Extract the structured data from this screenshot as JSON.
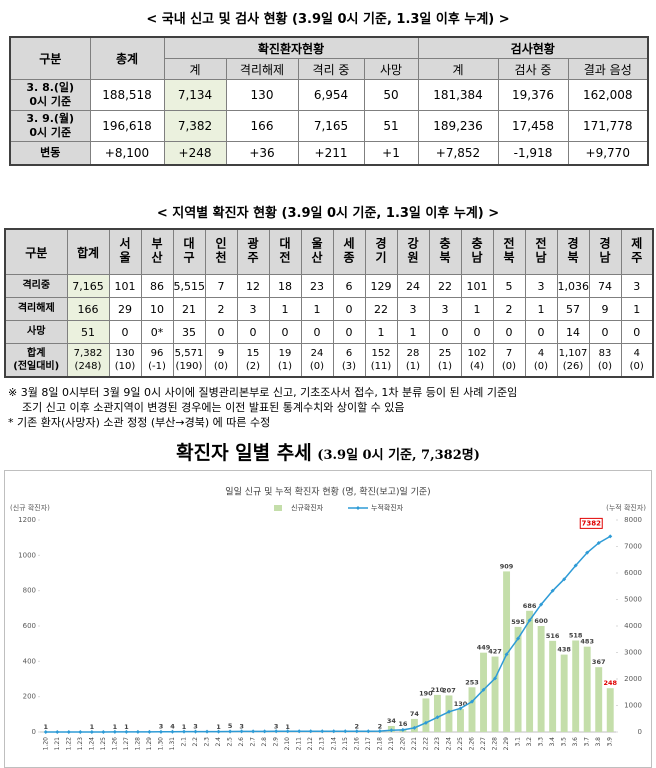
{
  "table1": {
    "title": "< 국내 신고 및 검사 현황 (3.9일 0시 기준, 1.3일 이후 누계) >",
    "header": {
      "group": "구분",
      "total": "총계",
      "confirmed": "확진환자현황",
      "tests": "검사현황",
      "sub": [
        "계",
        "격리해제",
        "격리 중",
        "사망",
        "계",
        "검사 중",
        "결과 음성"
      ]
    },
    "rows": [
      [
        [
          "3. 8.(일)",
          "0시 기준"
        ],
        "188,518",
        "7,134",
        "130",
        "6,954",
        "50",
        "181,384",
        "19,376",
        "162,008"
      ],
      [
        [
          "3. 9.(월)",
          "0시 기준"
        ],
        "196,618",
        "7,382",
        "166",
        "7,165",
        "51",
        "189,236",
        "17,458",
        "171,778"
      ],
      [
        "변동",
        "+8,100",
        "+248",
        "+36",
        "+211",
        "+1",
        "+7,852",
        "-1,918",
        "+9,770"
      ]
    ]
  },
  "table2": {
    "title": "< 지역별 확진자 현황 (3.9일 0시 기준, 1.3일 이후 누계) >",
    "header": [
      "구분",
      "합계",
      "서울",
      "부산",
      "대구",
      "인천",
      "광주",
      "대전",
      "울산",
      "세종",
      "경기",
      "강원",
      "충북",
      "충남",
      "전북",
      "전남",
      "경북",
      "경남",
      "제주"
    ],
    "rows": [
      [
        "격리중",
        "7,165",
        "101",
        "86",
        "5,515",
        "7",
        "12",
        "18",
        "23",
        "6",
        "129",
        "24",
        "22",
        "101",
        "5",
        "3",
        "1,036",
        "74",
        "3"
      ],
      [
        "격리해제",
        "166",
        "29",
        "10",
        "21",
        "2",
        "3",
        "1",
        "1",
        "0",
        "22",
        "3",
        "3",
        "1",
        "2",
        "1",
        "57",
        "9",
        "1"
      ],
      [
        "사망",
        "51",
        "0",
        "0*",
        "35",
        "0",
        "0",
        "0",
        "0",
        "0",
        "1",
        "1",
        "0",
        "0",
        "0",
        "0",
        "14",
        "0",
        "0"
      ],
      [
        [
          "합계",
          "(전일대비)"
        ],
        [
          "7,382",
          "(248)"
        ],
        [
          "130",
          "(10)"
        ],
        [
          "96",
          "(-1)"
        ],
        [
          "5,571",
          "(190)"
        ],
        [
          "9",
          "(0)"
        ],
        [
          "15",
          "(2)"
        ],
        [
          "19",
          "(1)"
        ],
        [
          "24",
          "(0)"
        ],
        [
          "6",
          "(3)"
        ],
        [
          "152",
          "(11)"
        ],
        [
          "28",
          "(1)"
        ],
        [
          "25",
          "(1)"
        ],
        [
          "102",
          "(4)"
        ],
        [
          "7",
          "(0)"
        ],
        [
          "4",
          "(0)"
        ],
        [
          "1,107",
          "(26)"
        ],
        [
          "83",
          "(0)"
        ],
        [
          "4",
          "(0)"
        ]
      ]
    ]
  },
  "notes": [
    "※ 3월 8일 0시부터 3월 9일 0시 사이에 질병관리본부로 신고, 기초조사서 접수, 1차 분류 등이 된 사례 기준임",
    "조기 신고 이후 소관지역이 변경된 경우에는 이전 발표된 통계수치와 상이할 수 있음",
    "* 기존 환자(사망자) 소관 정정 (부산→경북) 에 따른 수정"
  ],
  "chart_heading": {
    "main": "확진자 일별 추세",
    "sub": "(3.9일 0시 기준, 7,382명)"
  },
  "chart_data": {
    "type": "combo",
    "title": "일일 신규 및 누적 확진자 현황 (명, 확진(보고)일 기준)",
    "y_label": "(신규 확진자)",
    "y2_label": "(누적 확진자)",
    "legend": "top",
    "grid": false,
    "categories": [
      "1.20",
      "1.21",
      "1.22",
      "1.23",
      "1.24",
      "1.25",
      "1.26",
      "1.27",
      "1.28",
      "1.29",
      "1.30",
      "1.31",
      "2.1",
      "2.2",
      "2.3",
      "2.4",
      "2.5",
      "2.6",
      "2.7",
      "2.8",
      "2.9",
      "2.10",
      "2.11",
      "2.12",
      "2.13",
      "2.14",
      "2.15",
      "2.16",
      "2.17",
      "2.18",
      "2.19",
      "2.20",
      "2.21",
      "2.22",
      "2.23",
      "2.24",
      "2.25",
      "2.26",
      "2.27",
      "2.28",
      "2.29",
      "3.1",
      "3.2",
      "3.3",
      "3.4",
      "3.5",
      "3.6",
      "3.7",
      "3.8",
      "3.9"
    ],
    "series": [
      {
        "name": "신규확진자",
        "type": "bar",
        "color": "#c4deaa",
        "values": [
          1,
          0,
          0,
          0,
          1,
          0,
          1,
          1,
          0,
          0,
          3,
          4,
          1,
          3,
          0,
          1,
          5,
          3,
          0,
          0,
          3,
          1,
          0,
          0,
          0,
          0,
          0,
          2,
          0,
          2,
          34,
          16,
          74,
          190,
          210,
          207,
          130,
          253,
          449,
          427,
          909,
          595,
          686,
          600,
          516,
          438,
          518,
          483,
          367,
          248
        ]
      },
      {
        "name": "누적확진자",
        "type": "line",
        "color": "#2e9bd6",
        "axis": "y2",
        "values": [
          1,
          1,
          1,
          1,
          2,
          2,
          3,
          4,
          4,
          4,
          7,
          11,
          12,
          15,
          15,
          16,
          21,
          24,
          24,
          24,
          27,
          28,
          28,
          28,
          28,
          28,
          28,
          30,
          30,
          32,
          66,
          82,
          156,
          346,
          556,
          763,
          893,
          1146,
          1595,
          2022,
          2931,
          3526,
          4212,
          4812,
          5328,
          5766,
          6284,
          6767,
          7134,
          7382
        ]
      }
    ],
    "ylim": [
      0,
      1200
    ],
    "yticks": [
      0,
      200,
      400,
      600,
      800,
      1000,
      1200
    ],
    "y2lim": [
      0,
      8000
    ],
    "y2ticks": [
      0,
      1000,
      2000,
      3000,
      4000,
      5000,
      6000,
      7000,
      8000
    ]
  }
}
